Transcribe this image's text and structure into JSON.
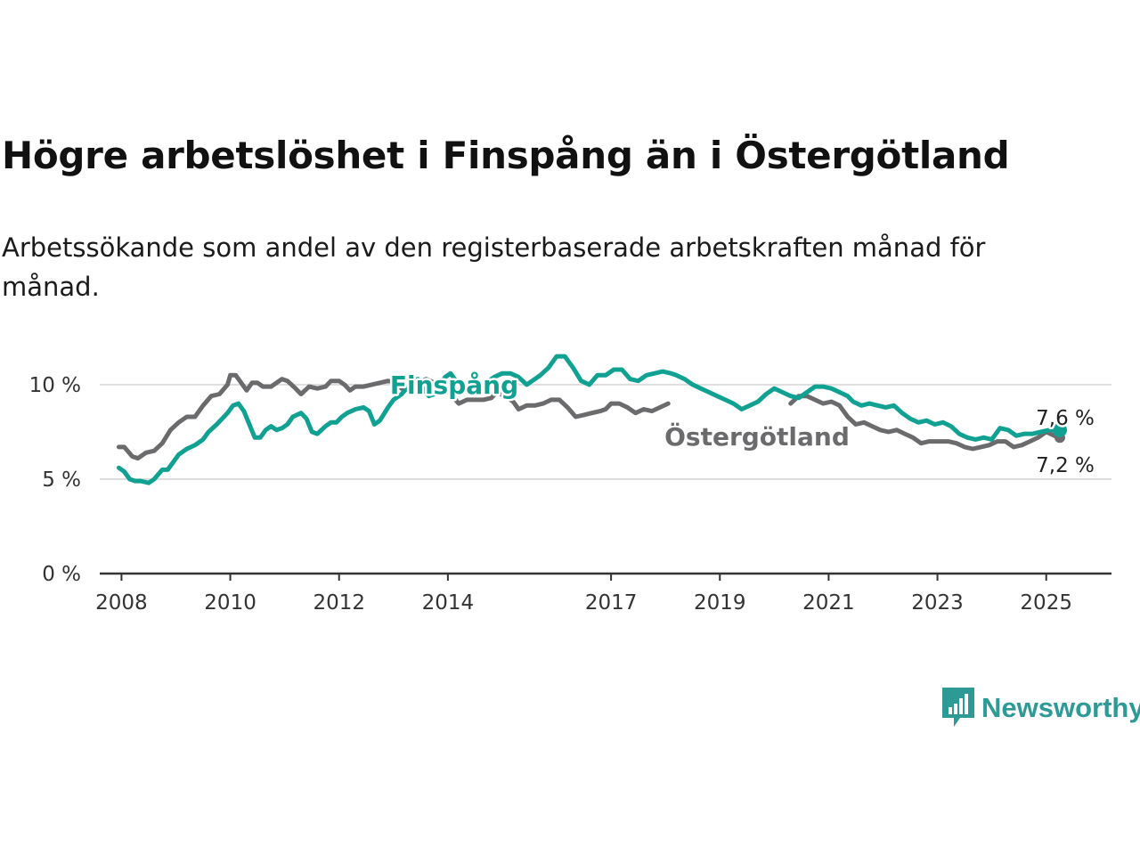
{
  "title": "Högre arbetslöshet i Finspång än i Östergötland",
  "subtitle": "Arbetssökande som andel av den registerbaserade arbetskraften månad för månad.",
  "brand": {
    "name": "Newsworthy",
    "icon": "newsworthy-logo-icon",
    "color": "#2e9a95"
  },
  "colors": {
    "finspang": "#11a192",
    "ostergotland": "#6b6b6e",
    "grid": "#dddddd",
    "axis": "#333333"
  },
  "chart_data": {
    "type": "line",
    "xlabel": "",
    "ylabel": "",
    "xlim": [
      2007.6,
      2026.2
    ],
    "ylim": [
      0,
      11.6
    ],
    "x_ticks": [
      2008,
      2010,
      2012,
      2014,
      2017,
      2019,
      2021,
      2023,
      2025
    ],
    "x_tick_labels": [
      "2008",
      "2010",
      "2012",
      "2014",
      "2017",
      "2019",
      "2021",
      "2023",
      "2025"
    ],
    "y_ticks": [
      0,
      5,
      10
    ],
    "y_tick_labels": [
      "0 %",
      "5 %",
      "10 %"
    ],
    "grid": true,
    "series": [
      {
        "name": "Östergötland",
        "color": "#6b6b6e",
        "end_label": "7,2 %",
        "points": [
          [
            2007.95,
            6.7
          ],
          [
            2008.05,
            6.7
          ],
          [
            2008.2,
            6.2
          ],
          [
            2008.3,
            6.1
          ],
          [
            2008.45,
            6.4
          ],
          [
            2008.6,
            6.5
          ],
          [
            2008.75,
            6.9
          ],
          [
            2008.9,
            7.6
          ],
          [
            2009.05,
            8.0
          ],
          [
            2009.2,
            8.3
          ],
          [
            2009.35,
            8.3
          ],
          [
            2009.5,
            8.9
          ],
          [
            2009.65,
            9.4
          ],
          [
            2009.8,
            9.5
          ],
          [
            2009.95,
            10.0
          ],
          [
            2010.0,
            10.5
          ],
          [
            2010.1,
            10.5
          ],
          [
            2010.2,
            10.1
          ],
          [
            2010.3,
            9.7
          ],
          [
            2010.4,
            10.1
          ],
          [
            2010.5,
            10.1
          ],
          [
            2010.6,
            9.9
          ],
          [
            2010.75,
            9.9
          ],
          [
            2010.85,
            10.1
          ],
          [
            2010.95,
            10.3
          ],
          [
            2011.05,
            10.2
          ],
          [
            2011.2,
            9.8
          ],
          [
            2011.3,
            9.5
          ],
          [
            2011.45,
            9.9
          ],
          [
            2011.6,
            9.8
          ],
          [
            2011.75,
            9.9
          ],
          [
            2011.85,
            10.2
          ],
          [
            2012.0,
            10.2
          ],
          [
            2012.1,
            10.0
          ],
          [
            2012.2,
            9.7
          ],
          [
            2012.3,
            9.9
          ],
          [
            2012.45,
            9.9
          ],
          [
            2012.6,
            10.0
          ],
          [
            2012.75,
            10.1
          ],
          [
            2012.9,
            10.2
          ],
          [
            2013.05,
            10.1
          ],
          [
            2013.15,
            9.8
          ],
          [
            2013.3,
            9.7
          ],
          [
            2013.45,
            10.1
          ],
          [
            2013.6,
            10.3
          ],
          [
            2013.75,
            10.1
          ],
          [
            2013.9,
            9.9
          ],
          [
            2014.05,
            9.5
          ],
          [
            2014.2,
            9.0
          ],
          [
            2014.35,
            9.2
          ],
          [
            2014.5,
            9.2
          ],
          [
            2014.65,
            9.2
          ],
          [
            2014.8,
            9.3
          ],
          [
            2014.9,
            9.6
          ],
          [
            2015.05,
            9.4
          ],
          [
            2015.2,
            9.1
          ],
          [
            2015.3,
            8.7
          ],
          [
            2015.45,
            8.9
          ],
          [
            2015.6,
            8.9
          ],
          [
            2015.75,
            9.0
          ],
          [
            2015.9,
            9.2
          ],
          [
            2016.05,
            9.2
          ],
          [
            2016.2,
            8.8
          ],
          [
            2016.35,
            8.3
          ],
          [
            2016.5,
            8.4
          ],
          [
            2016.65,
            8.5
          ],
          [
            2016.8,
            8.6
          ],
          [
            2016.9,
            8.7
          ],
          [
            2017.0,
            9.0
          ],
          [
            2017.15,
            9.0
          ],
          [
            2017.3,
            8.8
          ],
          [
            2017.45,
            8.5
          ],
          [
            2017.6,
            8.7
          ],
          [
            2017.75,
            8.6
          ],
          [
            2017.9,
            8.8
          ],
          [
            2018.05,
            9.0
          ],
          [
            2020.3,
            9.0
          ],
          [
            2020.45,
            9.4
          ],
          [
            2020.6,
            9.4
          ],
          [
            2020.75,
            9.2
          ],
          [
            2020.9,
            9.0
          ],
          [
            2021.05,
            9.1
          ],
          [
            2021.2,
            8.9
          ],
          [
            2021.35,
            8.3
          ],
          [
            2021.5,
            7.9
          ],
          [
            2021.65,
            8.0
          ],
          [
            2021.8,
            7.8
          ],
          [
            2021.95,
            7.6
          ],
          [
            2022.1,
            7.5
          ],
          [
            2022.25,
            7.6
          ],
          [
            2022.4,
            7.4
          ],
          [
            2022.55,
            7.2
          ],
          [
            2022.7,
            6.9
          ],
          [
            2022.85,
            7.0
          ],
          [
            2023.0,
            7.0
          ],
          [
            2023.1,
            7.0
          ],
          [
            2023.2,
            7.0
          ],
          [
            2023.35,
            6.9
          ],
          [
            2023.5,
            6.7
          ],
          [
            2023.65,
            6.6
          ],
          [
            2023.8,
            6.7
          ],
          [
            2023.95,
            6.8
          ],
          [
            2024.1,
            7.0
          ],
          [
            2024.25,
            7.0
          ],
          [
            2024.4,
            6.7
          ],
          [
            2024.55,
            6.8
          ],
          [
            2024.7,
            7.0
          ],
          [
            2024.85,
            7.2
          ],
          [
            2025.0,
            7.5
          ],
          [
            2025.15,
            7.3
          ],
          [
            2025.25,
            7.2
          ]
        ]
      },
      {
        "name": "Finspång",
        "color": "#11a192",
        "end_label": "7,6 %",
        "points": [
          [
            2007.95,
            5.6
          ],
          [
            2008.05,
            5.4
          ],
          [
            2008.15,
            5.0
          ],
          [
            2008.25,
            4.9
          ],
          [
            2008.35,
            4.9
          ],
          [
            2008.5,
            4.8
          ],
          [
            2008.6,
            5.0
          ],
          [
            2008.75,
            5.5
          ],
          [
            2008.85,
            5.5
          ],
          [
            2008.95,
            5.9
          ],
          [
            2009.05,
            6.3
          ],
          [
            2009.2,
            6.6
          ],
          [
            2009.35,
            6.8
          ],
          [
            2009.5,
            7.1
          ],
          [
            2009.6,
            7.5
          ],
          [
            2009.75,
            7.9
          ],
          [
            2009.85,
            8.2
          ],
          [
            2009.95,
            8.5
          ],
          [
            2010.05,
            8.9
          ],
          [
            2010.15,
            9.0
          ],
          [
            2010.25,
            8.6
          ],
          [
            2010.35,
            7.9
          ],
          [
            2010.45,
            7.2
          ],
          [
            2010.55,
            7.2
          ],
          [
            2010.65,
            7.6
          ],
          [
            2010.75,
            7.8
          ],
          [
            2010.85,
            7.6
          ],
          [
            2010.95,
            7.7
          ],
          [
            2011.05,
            7.9
          ],
          [
            2011.15,
            8.3
          ],
          [
            2011.3,
            8.5
          ],
          [
            2011.4,
            8.2
          ],
          [
            2011.5,
            7.5
          ],
          [
            2011.6,
            7.4
          ],
          [
            2011.75,
            7.8
          ],
          [
            2011.85,
            8.0
          ],
          [
            2011.95,
            8.0
          ],
          [
            2012.05,
            8.3
          ],
          [
            2012.15,
            8.5
          ],
          [
            2012.3,
            8.7
          ],
          [
            2012.45,
            8.8
          ],
          [
            2012.55,
            8.6
          ],
          [
            2012.65,
            7.9
          ],
          [
            2012.75,
            8.1
          ],
          [
            2012.9,
            8.8
          ],
          [
            2013.0,
            9.2
          ],
          [
            2013.15,
            9.5
          ],
          [
            2013.3,
            10.0
          ],
          [
            2013.45,
            10.3
          ],
          [
            2013.55,
            9.8
          ],
          [
            2013.65,
            9.4
          ],
          [
            2013.75,
            9.5
          ],
          [
            2013.85,
            10.0
          ],
          [
            2013.95,
            10.4
          ],
          [
            2014.05,
            10.6
          ],
          [
            2014.15,
            10.2
          ],
          [
            2014.3,
            9.8
          ],
          [
            2014.45,
            9.7
          ],
          [
            2014.55,
            9.6
          ],
          [
            2014.7,
            10.1
          ],
          [
            2014.85,
            10.4
          ],
          [
            2015.0,
            10.6
          ],
          [
            2015.15,
            10.6
          ],
          [
            2015.3,
            10.4
          ],
          [
            2015.45,
            10.0
          ],
          [
            2015.6,
            10.3
          ],
          [
            2015.7,
            10.5
          ],
          [
            2015.85,
            10.9
          ],
          [
            2016.0,
            11.5
          ],
          [
            2016.15,
            11.5
          ],
          [
            2016.3,
            10.9
          ],
          [
            2016.45,
            10.2
          ],
          [
            2016.6,
            10.0
          ],
          [
            2016.75,
            10.5
          ],
          [
            2016.9,
            10.5
          ],
          [
            2017.05,
            10.8
          ],
          [
            2017.2,
            10.8
          ],
          [
            2017.35,
            10.3
          ],
          [
            2017.5,
            10.2
          ],
          [
            2017.65,
            10.5
          ],
          [
            2017.8,
            10.6
          ],
          [
            2017.95,
            10.7
          ],
          [
            2018.1,
            10.6
          ],
          [
            2018.2,
            10.5
          ],
          [
            2018.35,
            10.3
          ],
          [
            2018.5,
            10.0
          ],
          [
            2018.65,
            9.8
          ],
          [
            2018.8,
            9.6
          ],
          [
            2018.95,
            9.4
          ],
          [
            2019.1,
            9.2
          ],
          [
            2019.25,
            9.0
          ],
          [
            2019.4,
            8.7
          ],
          [
            2019.55,
            8.9
          ],
          [
            2019.7,
            9.1
          ],
          [
            2019.85,
            9.5
          ],
          [
            2020.0,
            9.8
          ],
          [
            2020.15,
            9.6
          ],
          [
            2020.3,
            9.4
          ],
          [
            2020.45,
            9.3
          ],
          [
            2020.6,
            9.6
          ],
          [
            2020.75,
            9.9
          ],
          [
            2020.9,
            9.9
          ],
          [
            2021.05,
            9.8
          ],
          [
            2021.2,
            9.6
          ],
          [
            2021.35,
            9.4
          ],
          [
            2021.45,
            9.1
          ],
          [
            2021.6,
            8.9
          ],
          [
            2021.75,
            9.0
          ],
          [
            2021.9,
            8.9
          ],
          [
            2022.05,
            8.8
          ],
          [
            2022.2,
            8.9
          ],
          [
            2022.35,
            8.5
          ],
          [
            2022.5,
            8.2
          ],
          [
            2022.65,
            8.0
          ],
          [
            2022.8,
            8.1
          ],
          [
            2022.95,
            7.9
          ],
          [
            2023.1,
            8.0
          ],
          [
            2023.25,
            7.8
          ],
          [
            2023.4,
            7.4
          ],
          [
            2023.55,
            7.2
          ],
          [
            2023.7,
            7.1
          ],
          [
            2023.85,
            7.2
          ],
          [
            2024.0,
            7.1
          ],
          [
            2024.15,
            7.7
          ],
          [
            2024.3,
            7.6
          ],
          [
            2024.45,
            7.3
          ],
          [
            2024.6,
            7.4
          ],
          [
            2024.75,
            7.4
          ],
          [
            2024.9,
            7.5
          ],
          [
            2025.05,
            7.6
          ],
          [
            2025.25,
            7.6
          ]
        ]
      }
    ]
  }
}
